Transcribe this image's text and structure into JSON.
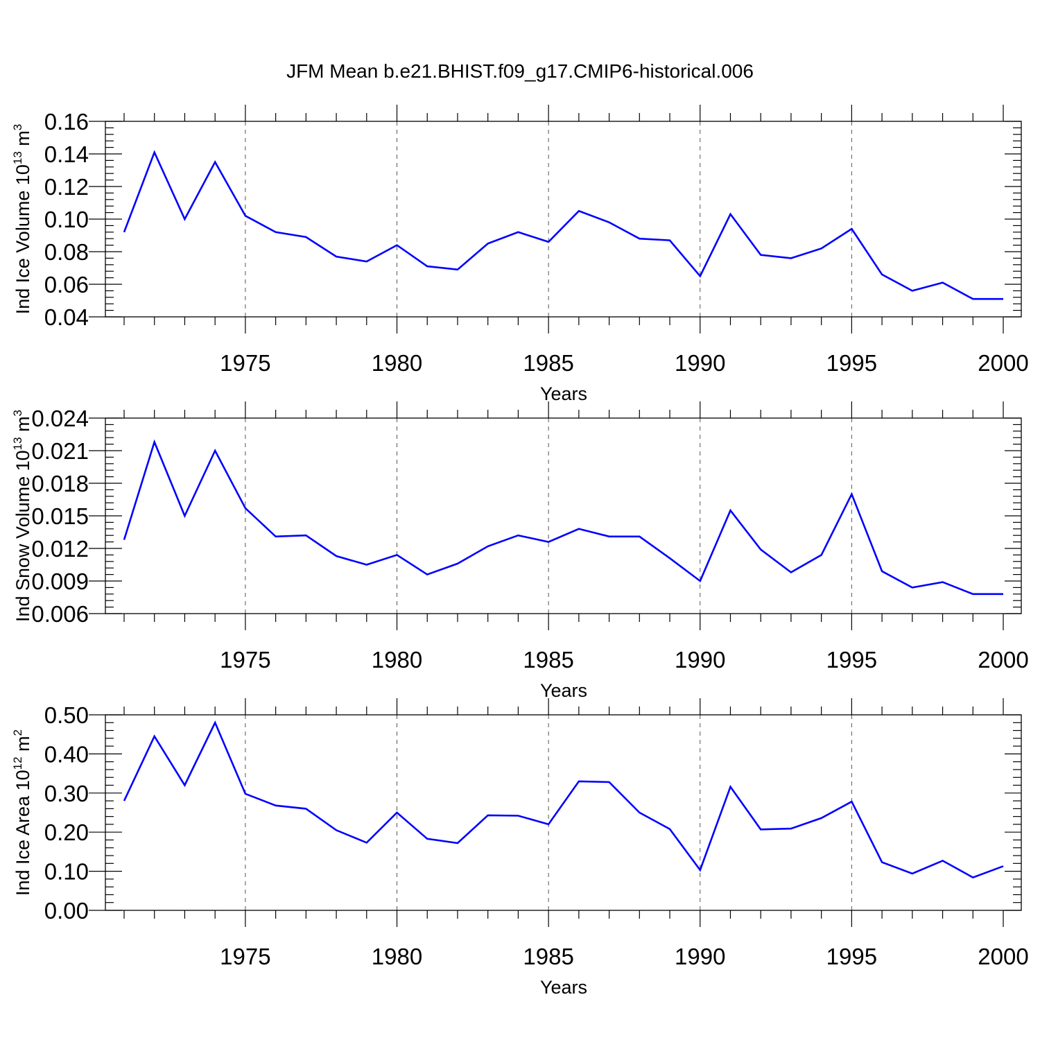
{
  "title": "JFM Mean b.e21.BHIST.f09_g17.CMIP6-historical.006",
  "chart_data": [
    {
      "type": "line",
      "ylabel": "Ind Ice Volume 10",
      "ylabel_exp": "13",
      "ylabel_unit": " m",
      "ylabel_unit_exp": "3",
      "xlabel": "Years",
      "x": [
        1971,
        1972,
        1973,
        1974,
        1975,
        1976,
        1977,
        1978,
        1979,
        1980,
        1981,
        1982,
        1983,
        1984,
        1985,
        1986,
        1987,
        1988,
        1989,
        1990,
        1991,
        1992,
        1993,
        1994,
        1995,
        1996,
        1997,
        1998,
        1999,
        2000
      ],
      "values": [
        0.092,
        0.141,
        0.1,
        0.135,
        0.102,
        0.092,
        0.089,
        0.077,
        0.074,
        0.084,
        0.071,
        0.069,
        0.085,
        0.092,
        0.086,
        0.105,
        0.098,
        0.088,
        0.087,
        0.065,
        0.103,
        0.078,
        0.076,
        0.082,
        0.094,
        0.066,
        0.056,
        0.061,
        0.051,
        0.051
      ],
      "ylim": [
        0.04,
        0.16
      ],
      "yticks": [
        0.04,
        0.06,
        0.08,
        0.1,
        0.12,
        0.14,
        0.16
      ],
      "ytick_labels": [
        "0.04",
        "0.06",
        "0.08",
        "0.10",
        "0.12",
        "0.14",
        "0.16"
      ],
      "xlim": [
        1971,
        2000
      ],
      "xticks": [
        1975,
        1980,
        1985,
        1990,
        1995,
        2000
      ],
      "xtick_labels": [
        "1975",
        "1980",
        "1985",
        "1990",
        "1995",
        "2000"
      ],
      "line_color": "#0000ff"
    },
    {
      "type": "line",
      "ylabel": "Ind Snow Volume 10",
      "ylabel_exp": "13",
      "ylabel_unit": " m",
      "ylabel_unit_exp": "3",
      "xlabel": "Years",
      "x": [
        1971,
        1972,
        1973,
        1974,
        1975,
        1976,
        1977,
        1978,
        1979,
        1980,
        1981,
        1982,
        1983,
        1984,
        1985,
        1986,
        1987,
        1988,
        1989,
        1990,
        1991,
        1992,
        1993,
        1994,
        1995,
        1996,
        1997,
        1998,
        1999,
        2000
      ],
      "values": [
        0.0128,
        0.0218,
        0.015,
        0.021,
        0.0157,
        0.0131,
        0.0132,
        0.0113,
        0.0105,
        0.0114,
        0.0096,
        0.0106,
        0.0122,
        0.0132,
        0.0126,
        0.0138,
        0.0131,
        0.0131,
        0.0111,
        0.009,
        0.0155,
        0.0119,
        0.0098,
        0.0114,
        0.017,
        0.0099,
        0.0084,
        0.0089,
        0.0078,
        0.0078
      ],
      "ylim": [
        0.006,
        0.024
      ],
      "yticks": [
        0.006,
        0.009,
        0.012,
        0.015,
        0.018,
        0.021,
        0.024
      ],
      "ytick_labels": [
        "0.006",
        "0.009",
        "0.012",
        "0.015",
        "0.018",
        "0.021",
        "0.024"
      ],
      "xlim": [
        1971,
        2000
      ],
      "xticks": [
        1975,
        1980,
        1985,
        1990,
        1995,
        2000
      ],
      "xtick_labels": [
        "1975",
        "1980",
        "1985",
        "1990",
        "1995",
        "2000"
      ],
      "line_color": "#0000ff"
    },
    {
      "type": "line",
      "ylabel": "Ind Ice Area 10",
      "ylabel_exp": "12",
      "ylabel_unit": " m",
      "ylabel_unit_exp": "2",
      "xlabel": "Years",
      "x": [
        1971,
        1972,
        1973,
        1974,
        1975,
        1976,
        1977,
        1978,
        1979,
        1980,
        1981,
        1982,
        1983,
        1984,
        1985,
        1986,
        1987,
        1988,
        1989,
        1990,
        1991,
        1992,
        1993,
        1994,
        1995,
        1996,
        1997,
        1998,
        1999,
        2000
      ],
      "values": [
        0.28,
        0.445,
        0.32,
        0.48,
        0.298,
        0.268,
        0.26,
        0.205,
        0.173,
        0.25,
        0.183,
        0.172,
        0.243,
        0.242,
        0.22,
        0.33,
        0.328,
        0.25,
        0.208,
        0.103,
        0.316,
        0.207,
        0.209,
        0.236,
        0.278,
        0.123,
        0.094,
        0.127,
        0.084,
        0.113
      ],
      "ylim": [
        0.0,
        0.5
      ],
      "yticks": [
        0.0,
        0.1,
        0.2,
        0.3,
        0.4,
        0.5
      ],
      "ytick_labels": [
        "0.00",
        "0.10",
        "0.20",
        "0.30",
        "0.40",
        "0.50"
      ],
      "xlim": [
        1971,
        2000
      ],
      "xticks": [
        1975,
        1980,
        1985,
        1990,
        1995,
        2000
      ],
      "xtick_labels": [
        "1975",
        "1980",
        "1985",
        "1990",
        "1995",
        "2000"
      ],
      "line_color": "#0000ff"
    }
  ]
}
